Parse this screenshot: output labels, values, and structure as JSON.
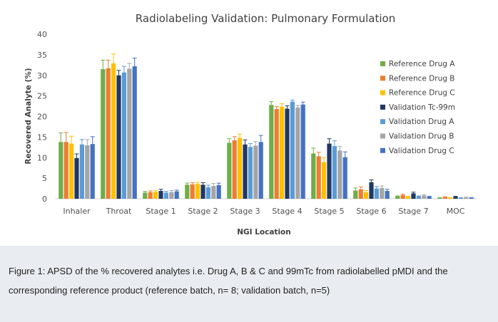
{
  "chart_data": {
    "type": "bar",
    "title": "Radiolabeling Validation: Pulmonary Formulation",
    "xlabel": "NGI Location",
    "ylabel": "Recovered Analyte (%)",
    "ylim": [
      0,
      40
    ],
    "yticks": [
      0,
      5,
      10,
      15,
      20,
      25,
      30,
      35,
      40
    ],
    "grid": false,
    "legend_position": "right",
    "error_bars": true,
    "categories": [
      "Inhaler",
      "Throat",
      "Stage 1",
      "Stage 2",
      "Stage 3",
      "Stage 4",
      "Stage 5",
      "Stage 6",
      "Stage 7",
      "MOC"
    ],
    "series": [
      {
        "name": "Reference Drug A",
        "color": "#70ad47",
        "values": [
          13.8,
          31.5,
          1.5,
          3.4,
          13.6,
          22.8,
          11.0,
          2.0,
          0.6,
          0.2
        ],
        "errors": [
          2.2,
          2.2,
          0.3,
          0.4,
          1.0,
          0.8,
          1.3,
          0.6,
          0.1,
          0.1
        ]
      },
      {
        "name": "Reference Drug B",
        "color": "#ed7d31",
        "values": [
          13.8,
          31.7,
          1.6,
          3.5,
          14.2,
          21.8,
          10.3,
          2.3,
          0.9,
          0.4
        ],
        "errors": [
          2.3,
          2.0,
          0.3,
          0.4,
          0.9,
          0.6,
          1.0,
          0.6,
          0.2,
          0.1
        ]
      },
      {
        "name": "Reference Drug C",
        "color": "#ffc000",
        "values": [
          13.4,
          32.9,
          1.7,
          3.6,
          14.8,
          22.4,
          8.9,
          1.6,
          0.5,
          0.2
        ],
        "errors": [
          1.8,
          2.3,
          0.3,
          0.4,
          0.9,
          0.7,
          1.1,
          0.4,
          0.1,
          0.1
        ]
      },
      {
        "name": "Validation Tc-99m",
        "color": "#1f3864",
        "values": [
          9.9,
          30.0,
          1.9,
          3.4,
          13.2,
          21.9,
          13.4,
          4.0,
          1.3,
          0.5
        ],
        "errors": [
          1.0,
          1.2,
          0.4,
          0.5,
          1.1,
          0.7,
          1.2,
          0.6,
          0.3,
          0.1
        ]
      },
      {
        "name": "Validation Drug A",
        "color": "#5b9bd5",
        "values": [
          13.2,
          30.7,
          1.5,
          2.8,
          12.6,
          23.6,
          12.8,
          2.5,
          0.6,
          0.2
        ],
        "errors": [
          1.2,
          1.5,
          0.3,
          0.5,
          0.8,
          0.4,
          1.3,
          0.5,
          0.1,
          0.1
        ]
      },
      {
        "name": "Validation Drug B",
        "color": "#a5a5a5",
        "values": [
          13.0,
          31.6,
          1.6,
          3.1,
          12.9,
          22.2,
          11.7,
          2.6,
          0.8,
          0.3
        ],
        "errors": [
          1.4,
          1.3,
          0.4,
          0.6,
          1.0,
          0.5,
          1.0,
          0.5,
          0.2,
          0.1
        ]
      },
      {
        "name": "Validation Drug C",
        "color": "#4472c4",
        "values": [
          13.3,
          32.2,
          1.8,
          3.3,
          13.8,
          22.9,
          10.1,
          1.9,
          0.5,
          0.2
        ],
        "errors": [
          1.8,
          2.0,
          0.3,
          0.5,
          1.6,
          0.6,
          1.3,
          0.4,
          0.1,
          0.1
        ]
      }
    ]
  },
  "caption": {
    "text": "Figure 1: APSD of the % recovered analytes i.e. Drug A, B & C and 99mTc from radiolabelled pMDI and the corresponding reference product (reference batch, n= 8; validation batch, n=5)"
  }
}
